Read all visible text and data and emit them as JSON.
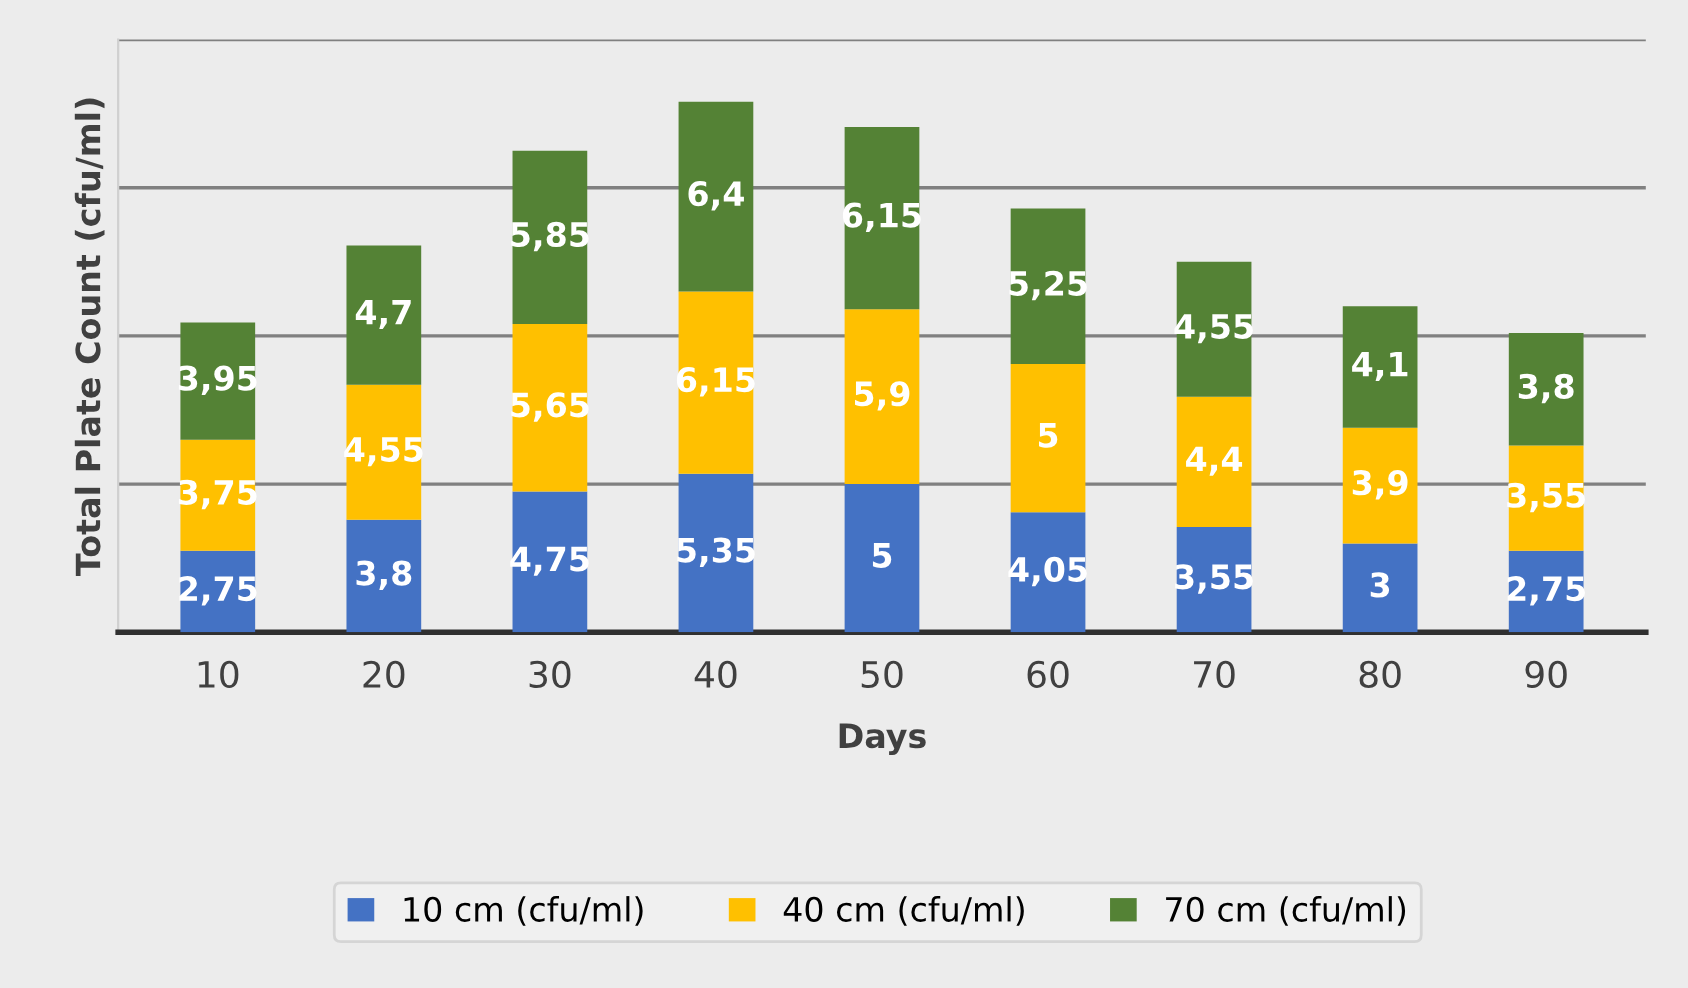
{
  "chart_data": {
    "type": "bar",
    "stacked": true,
    "xlabel": "Days",
    "ylabel": "Total Plate Count (cfu/ml)",
    "categories": [
      "10",
      "20",
      "30",
      "40",
      "50",
      "60",
      "70",
      "80",
      "90"
    ],
    "series": [
      {
        "name": "10 cm (cfu/ml)",
        "color": "#4472c4",
        "values": [
          2.75,
          3.8,
          4.75,
          5.35,
          5,
          4.05,
          3.55,
          3,
          2.75
        ],
        "value_labels": [
          "2,75",
          "3,8",
          "4,75",
          "5,35",
          "5",
          "4,05",
          "3,55",
          "3",
          "2,75"
        ]
      },
      {
        "name": "40 cm (cfu/ml)",
        "color": "#ffc000",
        "values": [
          3.75,
          4.55,
          5.65,
          6.15,
          5.9,
          5,
          4.4,
          3.9,
          3.55
        ],
        "value_labels": [
          "3,75",
          "4,55",
          "5,65",
          "6,15",
          "5,9",
          "5",
          "4,4",
          "3,9",
          "3,55"
        ]
      },
      {
        "name": "70 cm (cfu/ml)",
        "color": "#548235",
        "values": [
          3.95,
          4.7,
          5.85,
          6.4,
          6.15,
          5.25,
          4.55,
          4.1,
          3.8
        ],
        "value_labels": [
          "3,95",
          "4,7",
          "5,85",
          "6,4",
          "6,15",
          "5,25",
          "4,55",
          "4,1",
          "3,8"
        ]
      }
    ],
    "ylim": [
      0,
      20
    ],
    "yticks": [
      {
        "value": 0,
        "label": null
      },
      {
        "value": 5,
        "label": null
      },
      {
        "value": 10,
        "label": null
      },
      {
        "value": 15,
        "label": null
      },
      {
        "value": 20,
        "label": null
      }
    ],
    "tick_labels": "x",
    "grid": "y",
    "legend": "bottom"
  }
}
